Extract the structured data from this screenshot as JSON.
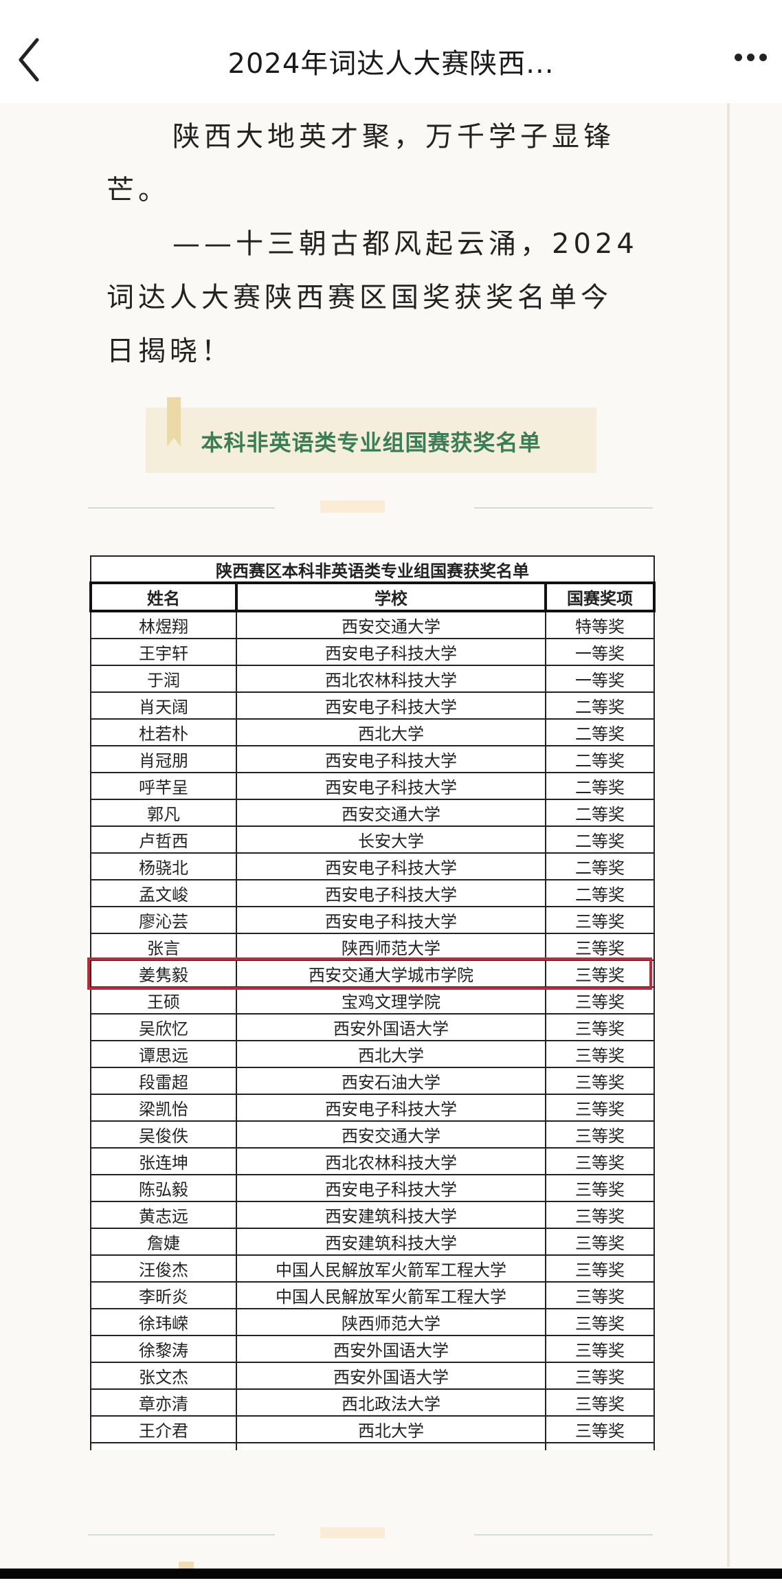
{
  "header": {
    "title": "2024年词达人大赛陕西...",
    "back_icon": "chevron-left-icon",
    "more_icon": "more-dots-icon"
  },
  "article": {
    "paragraph1": "陕西大地英才聚，万千学子显锋芒。",
    "paragraph2": "——十三朝古都风起云涌，2024词达人大赛陕西赛区国奖获奖名单今日揭晓！",
    "section_banner": "本科非英语类专业组国赛获奖名单"
  },
  "colors": {
    "accent_green": "#3b7d58",
    "highlight_red": "#c0283a",
    "banner_bg": "#f5eedb"
  },
  "table": {
    "title": "陕西赛区本科非英语类专业组国赛获奖名单",
    "headers": [
      "姓名",
      "学校",
      "国赛奖项"
    ],
    "highlighted_row": 13,
    "rows": [
      [
        "林煜翔",
        "西安交通大学",
        "特等奖"
      ],
      [
        "王宇轩",
        "西安电子科技大学",
        "一等奖"
      ],
      [
        "于润",
        "西北农林科技大学",
        "一等奖"
      ],
      [
        "肖天阔",
        "西安电子科技大学",
        "二等奖"
      ],
      [
        "杜若朴",
        "西北大学",
        "二等奖"
      ],
      [
        "肖冠朋",
        "西安电子科技大学",
        "二等奖"
      ],
      [
        "呼芊呈",
        "西安电子科技大学",
        "二等奖"
      ],
      [
        "郭凡",
        "西安交通大学",
        "二等奖"
      ],
      [
        "卢哲西",
        "长安大学",
        "二等奖"
      ],
      [
        "杨骁北",
        "西安电子科技大学",
        "二等奖"
      ],
      [
        "孟文峻",
        "西安电子科技大学",
        "二等奖"
      ],
      [
        "廖沁芸",
        "西安电子科技大学",
        "三等奖"
      ],
      [
        "张言",
        "陕西师范大学",
        "三等奖"
      ],
      [
        "姜隽毅",
        "西安交通大学城市学院",
        "三等奖"
      ],
      [
        "王硕",
        "宝鸡文理学院",
        "三等奖"
      ],
      [
        "吴欣忆",
        "西安外国语大学",
        "三等奖"
      ],
      [
        "谭思远",
        "西北大学",
        "三等奖"
      ],
      [
        "段雷超",
        "西安石油大学",
        "三等奖"
      ],
      [
        "梁凯怡",
        "西安电子科技大学",
        "三等奖"
      ],
      [
        "吴俊佚",
        "西安交通大学",
        "三等奖"
      ],
      [
        "张连坤",
        "西北农林科技大学",
        "三等奖"
      ],
      [
        "陈弘毅",
        "西安电子科技大学",
        "三等奖"
      ],
      [
        "黄志远",
        "西安建筑科技大学",
        "三等奖"
      ],
      [
        "詹婕",
        "西安建筑科技大学",
        "三等奖"
      ],
      [
        "汪俊杰",
        "中国人民解放军火箭军工程大学",
        "三等奖"
      ],
      [
        "李昕炎",
        "中国人民解放军火箭军工程大学",
        "三等奖"
      ],
      [
        "徐玮嵘",
        "陕西师范大学",
        "三等奖"
      ],
      [
        "徐黎涛",
        "西安外国语大学",
        "三等奖"
      ],
      [
        "张文杰",
        "西安外国语大学",
        "三等奖"
      ],
      [
        "章亦清",
        "西北政法大学",
        "三等奖"
      ],
      [
        "王介君",
        "西北大学",
        "三等奖"
      ]
    ]
  }
}
